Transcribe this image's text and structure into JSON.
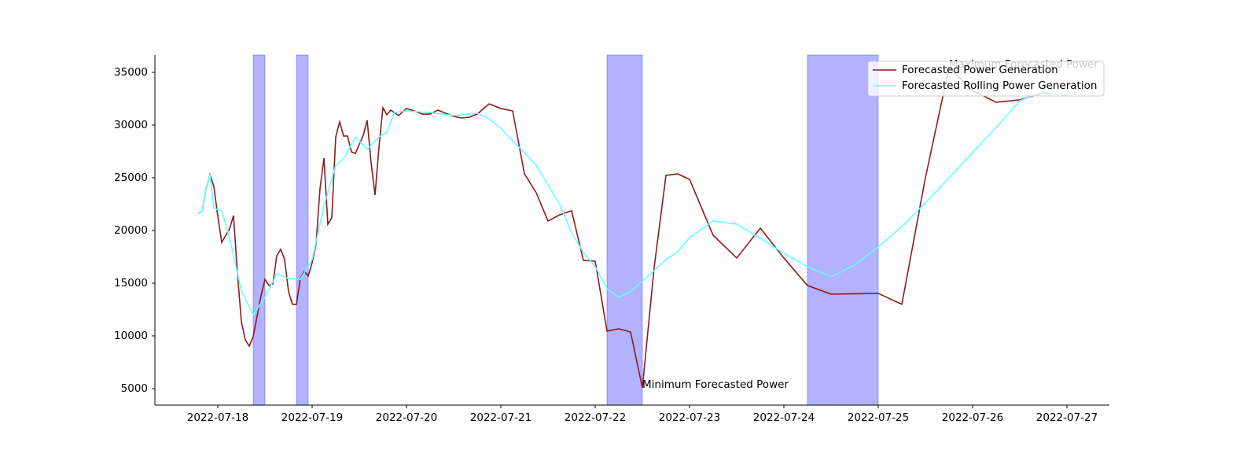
{
  "chart_data": {
    "type": "line",
    "xlim": [
      "2022-07-17T08:00",
      "2022-07-27T10:48"
    ],
    "xticks": [
      "2022-07-18",
      "2022-07-19",
      "2022-07-20",
      "2022-07-21",
      "2022-07-22",
      "2022-07-23",
      "2022-07-24",
      "2022-07-25",
      "2022-07-26",
      "2022-07-27"
    ],
    "ylim": [
      3430,
      36640
    ],
    "yticks": [
      5000,
      10000,
      15000,
      20000,
      25000,
      30000,
      35000
    ],
    "grid": false,
    "legend": "upper right",
    "spans": [
      {
        "start": "2022-07-18T09:00",
        "end": "2022-07-18T12:00",
        "color": "#0000ff"
      },
      {
        "start": "2022-07-18T20:00",
        "end": "2022-07-18T23:00",
        "color": "#0000ff"
      },
      {
        "start": "2022-07-22T03:00",
        "end": "2022-07-22T12:00",
        "color": "#0000ff"
      },
      {
        "start": "2022-07-24T06:00",
        "end": "2022-07-25T00:00",
        "color": "#0000ff"
      }
    ],
    "annotations": [
      {
        "text": "Minimum Forecasted Power",
        "x": "2022-07-22T12:00",
        "y": 5070
      },
      {
        "text": "Maximum Forecasted Power",
        "x": "2022-07-25T18:00",
        "y": 35450
      }
    ],
    "series": [
      {
        "name": "Forecasted Power Generation",
        "color": "#8b1c1c",
        "x": [
          "2022-07-17T19:00",
          "2022-07-17T20:00",
          "2022-07-17T21:00",
          "2022-07-17T22:00",
          "2022-07-17T23:00",
          "2022-07-18T00:00",
          "2022-07-18T01:00",
          "2022-07-18T03:00",
          "2022-07-18T04:00",
          "2022-07-18T05:00",
          "2022-07-18T06:00",
          "2022-07-18T07:00",
          "2022-07-18T08:00",
          "2022-07-18T09:00",
          "2022-07-18T11:00",
          "2022-07-18T12:00",
          "2022-07-18T13:00",
          "2022-07-18T14:00",
          "2022-07-18T15:00",
          "2022-07-18T16:00",
          "2022-07-18T17:00",
          "2022-07-18T18:00",
          "2022-07-18T19:00",
          "2022-07-18T20:00",
          "2022-07-18T21:00",
          "2022-07-18T22:00",
          "2022-07-18T23:00",
          "2022-07-19T00:00",
          "2022-07-19T01:00",
          "2022-07-19T02:00",
          "2022-07-19T03:00",
          "2022-07-19T04:00",
          "2022-07-19T05:00",
          "2022-07-19T06:00",
          "2022-07-19T07:00",
          "2022-07-19T08:00",
          "2022-07-19T09:00",
          "2022-07-19T10:00",
          "2022-07-19T11:00",
          "2022-07-19T13:00",
          "2022-07-19T14:00",
          "2022-07-19T15:00",
          "2022-07-19T16:00",
          "2022-07-19T17:00",
          "2022-07-19T18:00",
          "2022-07-19T19:00",
          "2022-07-19T20:00",
          "2022-07-19T22:00",
          "2022-07-20T00:00",
          "2022-07-20T02:00",
          "2022-07-20T04:00",
          "2022-07-20T06:00",
          "2022-07-20T08:00",
          "2022-07-20T10:00",
          "2022-07-20T12:00",
          "2022-07-20T14:00",
          "2022-07-20T16:00",
          "2022-07-20T18:00",
          "2022-07-20T21:00",
          "2022-07-21T00:00",
          "2022-07-21T03:00",
          "2022-07-21T06:00",
          "2022-07-21T09:00",
          "2022-07-21T12:00",
          "2022-07-21T15:00",
          "2022-07-21T18:00",
          "2022-07-21T21:00",
          "2022-07-22T00:00",
          "2022-07-22T03:00",
          "2022-07-22T06:00",
          "2022-07-22T09:00",
          "2022-07-22T12:00",
          "2022-07-22T15:00",
          "2022-07-22T18:00",
          "2022-07-22T21:00",
          "2022-07-23T00:00",
          "2022-07-23T06:00",
          "2022-07-23T12:00",
          "2022-07-23T18:00",
          "2022-07-24T00:00",
          "2022-07-24T06:00",
          "2022-07-24T12:00",
          "2022-07-25T00:00",
          "2022-07-25T06:00",
          "2022-07-25T12:00",
          "2022-07-25T18:00",
          "2022-07-26T00:00",
          "2022-07-26T06:00",
          "2022-07-26T12:00",
          "2022-07-26T18:00",
          "2022-07-27T00:00"
        ],
        "values": [
          21640,
          21790,
          23950,
          25300,
          24180,
          21340,
          18880,
          20150,
          21420,
          15900,
          11340,
          9630,
          9030,
          9930,
          13810,
          15370,
          14780,
          14930,
          17610,
          18210,
          17240,
          14180,
          12990,
          12990,
          15450,
          16120,
          15670,
          16940,
          18730,
          23960,
          26870,
          20600,
          21190,
          28880,
          30300,
          28960,
          28960,
          27460,
          27310,
          29030,
          30450,
          26420,
          23360,
          27910,
          31640,
          30970,
          31420,
          30900,
          31570,
          31340,
          31040,
          31040,
          31420,
          31120,
          30820,
          30670,
          30750,
          31040,
          32010,
          31570,
          31340,
          25370,
          23580,
          20900,
          21490,
          21870,
          17160,
          17090,
          10450,
          10670,
          10370,
          5070,
          16490,
          25220,
          25370,
          24850,
          19550,
          17390,
          20220,
          17390,
          14780,
          13960,
          14030,
          12990,
          25000,
          35450,
          33280,
          32160,
          32390,
          33060,
          32840
        ]
      },
      {
        "name": "Forecasted Rolling Power Generation",
        "color": "#66ffff",
        "x": [
          "2022-07-17T19:00",
          "2022-07-17T20:00",
          "2022-07-17T21:00",
          "2022-07-17T22:00",
          "2022-07-17T23:00",
          "2022-07-18T01:00",
          "2022-07-18T03:00",
          "2022-07-18T06:00",
          "2022-07-18T09:00",
          "2022-07-18T12:00",
          "2022-07-18T15:00",
          "2022-07-18T18:00",
          "2022-07-18T21:00",
          "2022-07-19T00:00",
          "2022-07-19T03:00",
          "2022-07-19T06:00",
          "2022-07-19T08:00",
          "2022-07-19T11:00",
          "2022-07-19T14:00",
          "2022-07-19T17:00",
          "2022-07-19T19:00",
          "2022-07-19T21:00",
          "2022-07-20T00:00",
          "2022-07-20T06:00",
          "2022-07-20T12:00",
          "2022-07-20T18:00",
          "2022-07-20T21:00",
          "2022-07-21T00:00",
          "2022-07-21T03:00",
          "2022-07-21T06:00",
          "2022-07-21T09:00",
          "2022-07-21T15:00",
          "2022-07-21T18:00",
          "2022-07-21T21:00",
          "2022-07-22T00:00",
          "2022-07-22T03:00",
          "2022-07-22T06:00",
          "2022-07-22T09:00",
          "2022-07-22T15:00",
          "2022-07-22T18:00",
          "2022-07-22T21:00",
          "2022-07-23T00:00",
          "2022-07-23T06:00",
          "2022-07-23T12:00",
          "2022-07-23T18:00",
          "2022-07-24T00:00",
          "2022-07-24T06:00",
          "2022-07-24T12:00",
          "2022-07-24T18:00",
          "2022-07-25T00:00",
          "2022-07-25T06:00",
          "2022-07-25T12:00",
          "2022-07-25T18:00",
          "2022-07-26T00:00",
          "2022-07-26T06:00",
          "2022-07-26T12:00",
          "2022-07-26T18:00",
          "2022-07-27T00:00"
        ],
        "values": [
          21640,
          21790,
          23950,
          25300,
          22090,
          21870,
          19330,
          14250,
          12010,
          13660,
          15900,
          15450,
          15370,
          17240,
          22310,
          26190,
          26790,
          28880,
          27690,
          28880,
          29330,
          31190,
          31340,
          31190,
          30900,
          31120,
          30600,
          29700,
          28510,
          27390,
          26190,
          22460,
          19780,
          17910,
          16570,
          14480,
          13660,
          14180,
          16190,
          17240,
          17990,
          19330,
          20900,
          20600,
          19250,
          17840,
          16570,
          15600,
          16720,
          18430,
          20370,
          22610,
          25000,
          27390,
          29780,
          32310,
          33210,
          32760
        ]
      }
    ]
  }
}
